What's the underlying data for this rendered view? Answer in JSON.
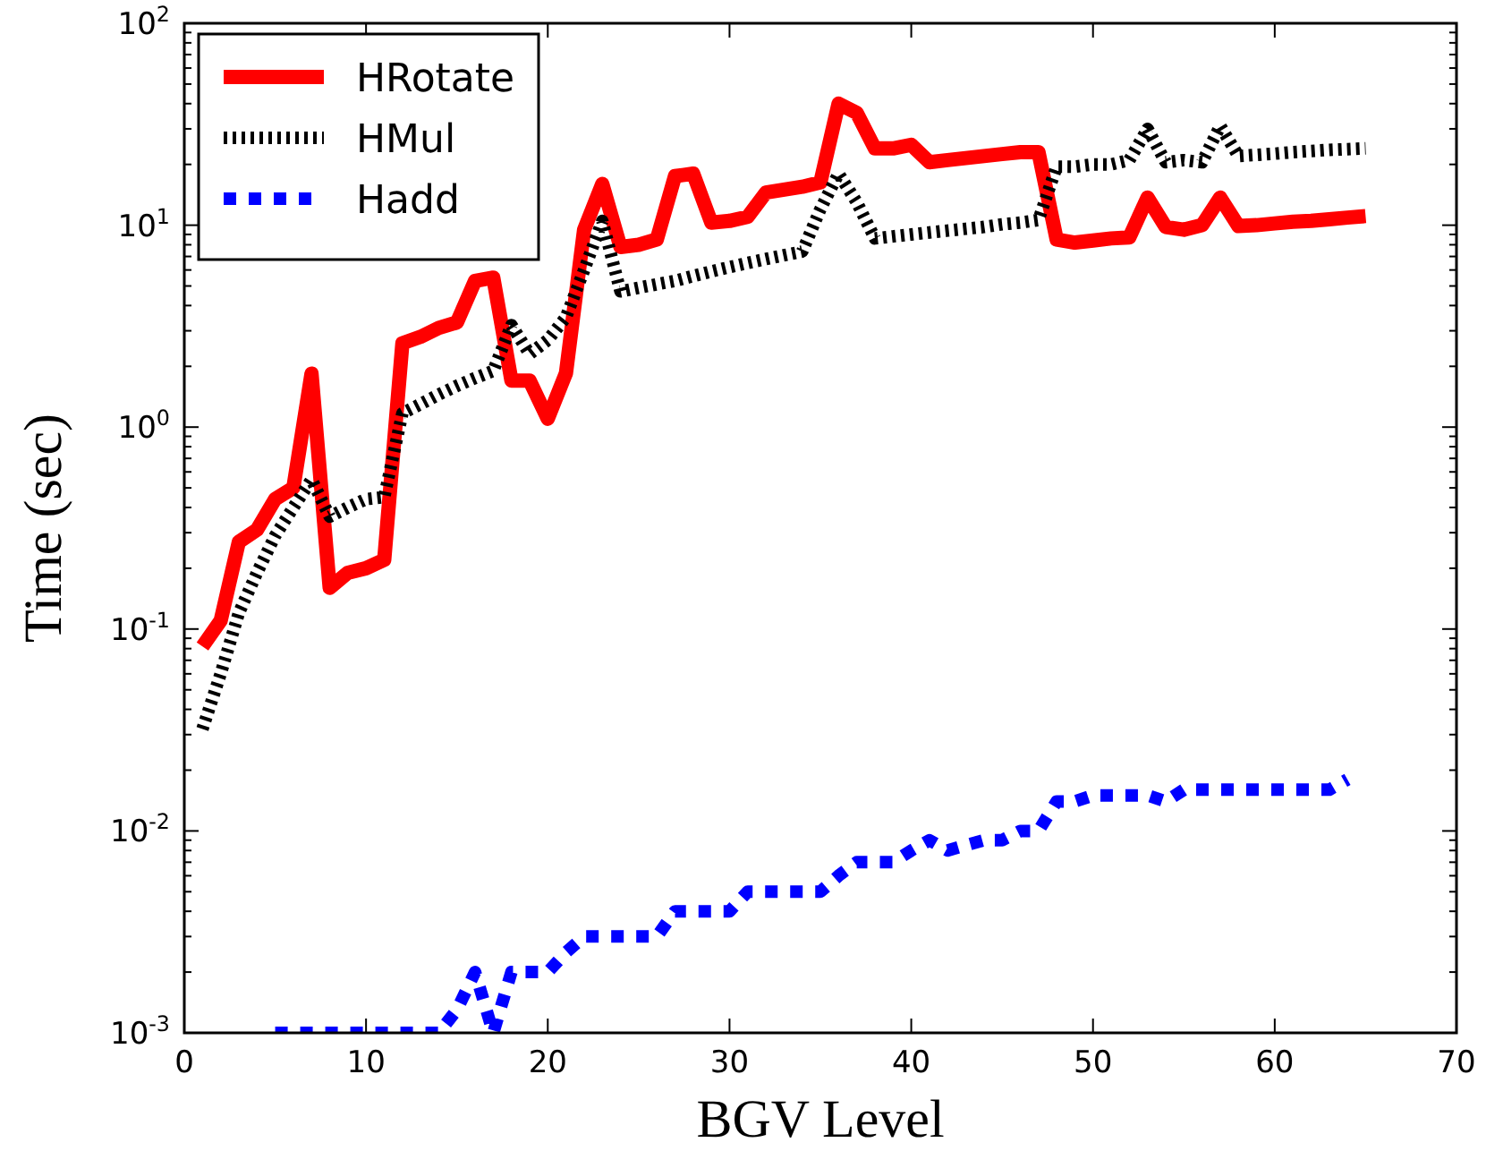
{
  "chart_data": {
    "type": "line",
    "xlabel": "BGV Level",
    "ylabel": "Time (sec)",
    "log": "y",
    "grid": false,
    "legend": "top left",
    "x": [
      1,
      2,
      3,
      4,
      5,
      6,
      7,
      8,
      9,
      10,
      11,
      12,
      13,
      14,
      15,
      16,
      17,
      18,
      19,
      20,
      21,
      22,
      23,
      24,
      25,
      26,
      27,
      28,
      29,
      30,
      31,
      32,
      33,
      34,
      35,
      36,
      37,
      38,
      39,
      40,
      41,
      42,
      43,
      44,
      45,
      46,
      47,
      48,
      49,
      50,
      51,
      52,
      53,
      54,
      55,
      56,
      57,
      58,
      59,
      60,
      61,
      62,
      63,
      64,
      65
    ],
    "xlim": [
      0,
      70
    ],
    "xticks": [
      0,
      10,
      20,
      30,
      40,
      50,
      60,
      70
    ],
    "ylim": [
      0.001,
      100
    ],
    "yticks": [
      {
        "value": 0.001,
        "label": "10$^{-3}$"
      },
      {
        "value": 0.002,
        "label": null
      },
      {
        "value": 0.003,
        "label": null
      },
      {
        "value": 0.004,
        "label": null
      },
      {
        "value": 0.005,
        "label": null
      },
      {
        "value": 0.006,
        "label": null
      },
      {
        "value": 0.007,
        "label": null
      },
      {
        "value": 0.008,
        "label": null
      },
      {
        "value": 0.009,
        "label": null
      },
      {
        "value": 0.01,
        "label": "10$^{-2}$"
      },
      {
        "value": 0.02,
        "label": null
      },
      {
        "value": 0.03,
        "label": null
      },
      {
        "value": 0.04,
        "label": null
      },
      {
        "value": 0.05,
        "label": null
      },
      {
        "value": 0.06,
        "label": null
      },
      {
        "value": 0.07,
        "label": null
      },
      {
        "value": 0.08,
        "label": null
      },
      {
        "value": 0.09,
        "label": null
      },
      {
        "value": 0.1,
        "label": "10$^{-1}$"
      },
      {
        "value": 0.2,
        "label": null
      },
      {
        "value": 0.3,
        "label": null
      },
      {
        "value": 0.4,
        "label": null
      },
      {
        "value": 0.5,
        "label": null
      },
      {
        "value": 0.6,
        "label": null
      },
      {
        "value": 0.7,
        "label": null
      },
      {
        "value": 0.8,
        "label": null
      },
      {
        "value": 0.9,
        "label": null
      },
      {
        "value": 1,
        "label": "10$^{0}$"
      },
      {
        "value": 2,
        "label": null
      },
      {
        "value": 3,
        "label": null
      },
      {
        "value": 4,
        "label": null
      },
      {
        "value": 5,
        "label": null
      },
      {
        "value": 6,
        "label": null
      },
      {
        "value": 7,
        "label": null
      },
      {
        "value": 8,
        "label": null
      },
      {
        "value": 9,
        "label": null
      },
      {
        "value": 10,
        "label": "10$^{1}$"
      },
      {
        "value": 20,
        "label": null
      },
      {
        "value": 30,
        "label": null
      },
      {
        "value": 40,
        "label": null
      },
      {
        "value": 50,
        "label": null
      },
      {
        "value": 60,
        "label": null
      },
      {
        "value": 70,
        "label": null
      },
      {
        "value": 80,
        "label": null
      },
      {
        "value": 90,
        "label": null
      },
      {
        "value": 100,
        "label": "10$^{2}$"
      }
    ],
    "series": [
      {
        "name": "HRotate",
        "color": "#ff0000",
        "line_style": "solid",
        "values": [
          0.082,
          0.11,
          0.27,
          0.31,
          0.44,
          0.5,
          1.84,
          0.16,
          0.19,
          0.2,
          0.22,
          2.6,
          2.8,
          3.1,
          3.3,
          5.3,
          5.5,
          1.7,
          1.7,
          1.1,
          1.85,
          9.5,
          16,
          7.8,
          8,
          8.5,
          17.5,
          18,
          10.3,
          10.5,
          11,
          14.5,
          15,
          15.5,
          16.3,
          40,
          36,
          24,
          24,
          25,
          20.5,
          21,
          21.5,
          22,
          22.5,
          23,
          23,
          8.5,
          8.2,
          8.4,
          8.6,
          8.7,
          13.7,
          9.8,
          9.5,
          10,
          13.7,
          9.9,
          10,
          10.2,
          10.4,
          10.5,
          10.7,
          10.9,
          11.1
        ]
      },
      {
        "name": "HMul",
        "color": "#000000",
        "line_style": "dotted",
        "values": [
          0.032,
          0.06,
          0.12,
          0.19,
          0.29,
          0.4,
          0.55,
          0.36,
          0.4,
          0.44,
          0.45,
          1.17,
          1.3,
          1.45,
          1.6,
          1.75,
          1.9,
          3.2,
          2.3,
          2.7,
          3.5,
          6,
          10.5,
          4.7,
          4.9,
          5.1,
          5.3,
          5.6,
          5.9,
          6.2,
          6.5,
          6.8,
          7.1,
          7.4,
          12,
          18,
          13,
          8.6,
          8.8,
          9,
          9.2,
          9.4,
          9.6,
          9.8,
          10.1,
          10.3,
          10.6,
          19.5,
          19.5,
          20,
          20,
          21,
          30,
          20.5,
          21,
          20.5,
          31,
          22,
          22.3,
          22.6,
          23,
          23.3,
          23.6,
          23.8,
          24
        ]
      },
      {
        "name": "Hadd",
        "color": "#0000ff",
        "line_style": "dashed",
        "values": [
          null,
          null,
          null,
          null,
          0.001,
          0.001,
          0.001,
          0.001,
          0.001,
          0.001,
          0.001,
          0.001,
          0.001,
          0.001,
          0.0013,
          0.002,
          0.001,
          0.002,
          0.002,
          0.002,
          0.0025,
          0.003,
          0.003,
          0.003,
          0.003,
          0.003,
          0.004,
          0.004,
          0.004,
          0.004,
          0.005,
          0.005,
          0.005,
          0.005,
          0.005,
          0.006,
          0.007,
          0.007,
          0.007,
          0.008,
          0.009,
          0.008,
          0.0085,
          0.009,
          0.009,
          0.01,
          0.01,
          0.014,
          0.014,
          0.015,
          0.015,
          0.015,
          0.015,
          0.014,
          0.016,
          0.016,
          0.016,
          0.016,
          0.016,
          0.016,
          0.016,
          0.016,
          0.016,
          0.018,
          null
        ]
      }
    ]
  }
}
